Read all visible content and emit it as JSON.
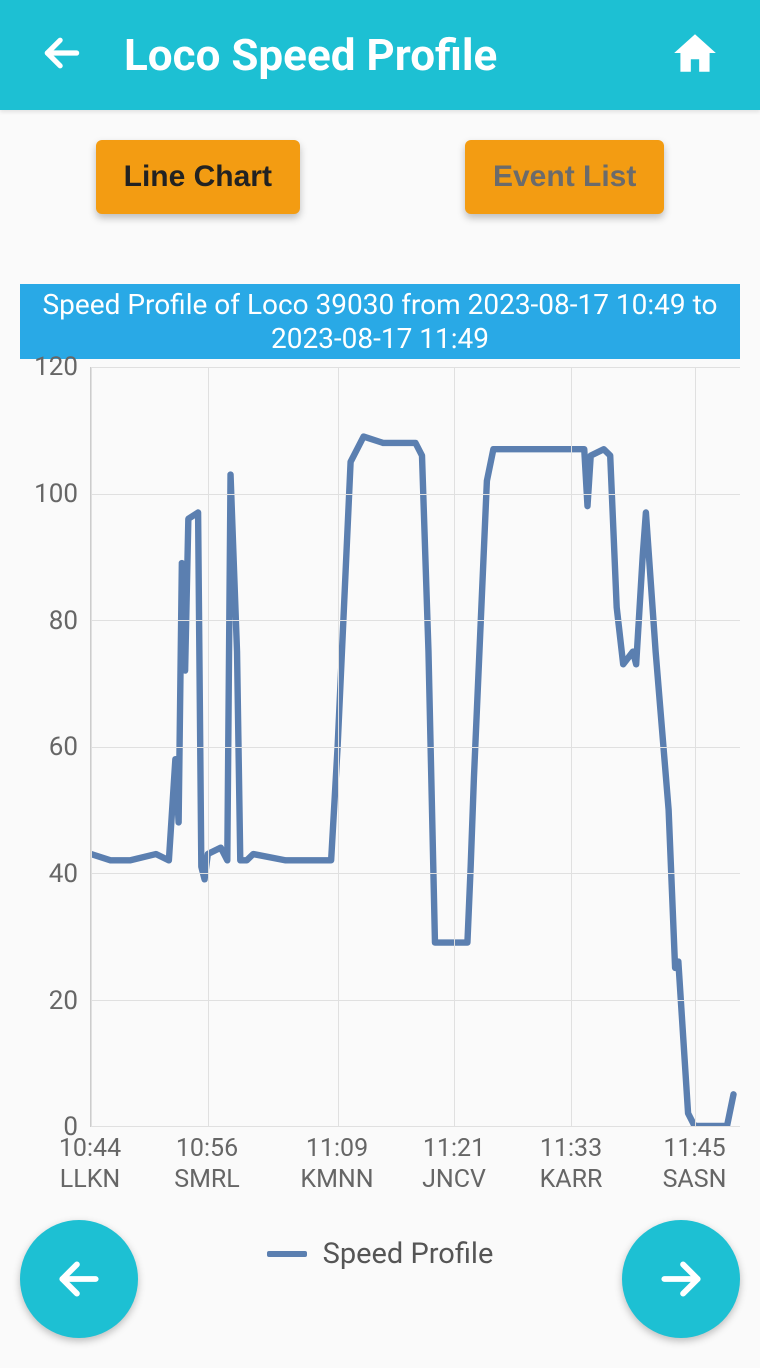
{
  "header": {
    "title": "Loco Speed Profile",
    "accent_color": "#1dc0d3"
  },
  "tabs": {
    "line_chart_label": "Line Chart",
    "event_list_label": "Event List",
    "button_color": "#f39c12",
    "active_text_color": "#222222",
    "inactive_text_color": "#6b6b6b"
  },
  "chart": {
    "title": "Speed Profile of Loco 39030 from 2023-08-17 10:49 to 2023-08-17 11:49",
    "title_bg_color": "#29a9e6",
    "title_text_color": "#ffffff",
    "type": "line",
    "ylim": [
      0,
      120
    ],
    "ytick_step": 20,
    "y_ticks": [
      0,
      20,
      40,
      60,
      80,
      100,
      120
    ],
    "x_ticks": [
      {
        "pos": 0.0,
        "time": "10:44",
        "station": "LLKN"
      },
      {
        "pos": 0.18,
        "time": "10:56",
        "station": "SMRL"
      },
      {
        "pos": 0.38,
        "time": "11:09",
        "station": "KMNN"
      },
      {
        "pos": 0.56,
        "time": "11:21",
        "station": "JNCV"
      },
      {
        "pos": 0.74,
        "time": "11:33",
        "station": "KARR"
      },
      {
        "pos": 0.93,
        "time": "11:45",
        "station": "SASN"
      }
    ],
    "line_color": "#5b7fb0",
    "line_width": 4,
    "grid_color": "#e0e0e0",
    "background_color": "#ffffff",
    "axis_text_color": "#666666",
    "series": [
      {
        "x": 0.0,
        "y": 43
      },
      {
        "x": 0.03,
        "y": 42
      },
      {
        "x": 0.06,
        "y": 42
      },
      {
        "x": 0.1,
        "y": 43
      },
      {
        "x": 0.12,
        "y": 42
      },
      {
        "x": 0.13,
        "y": 58
      },
      {
        "x": 0.135,
        "y": 48
      },
      {
        "x": 0.14,
        "y": 89
      },
      {
        "x": 0.145,
        "y": 72
      },
      {
        "x": 0.15,
        "y": 96
      },
      {
        "x": 0.165,
        "y": 97
      },
      {
        "x": 0.17,
        "y": 41
      },
      {
        "x": 0.175,
        "y": 39
      },
      {
        "x": 0.18,
        "y": 43
      },
      {
        "x": 0.2,
        "y": 44
      },
      {
        "x": 0.21,
        "y": 42
      },
      {
        "x": 0.215,
        "y": 103
      },
      {
        "x": 0.225,
        "y": 75
      },
      {
        "x": 0.23,
        "y": 42
      },
      {
        "x": 0.24,
        "y": 42
      },
      {
        "x": 0.25,
        "y": 43
      },
      {
        "x": 0.3,
        "y": 42
      },
      {
        "x": 0.35,
        "y": 42
      },
      {
        "x": 0.37,
        "y": 42
      },
      {
        "x": 0.38,
        "y": 60
      },
      {
        "x": 0.4,
        "y": 105
      },
      {
        "x": 0.42,
        "y": 109
      },
      {
        "x": 0.45,
        "y": 108
      },
      {
        "x": 0.5,
        "y": 108
      },
      {
        "x": 0.51,
        "y": 106
      },
      {
        "x": 0.52,
        "y": 75
      },
      {
        "x": 0.53,
        "y": 29
      },
      {
        "x": 0.55,
        "y": 29
      },
      {
        "x": 0.58,
        "y": 29
      },
      {
        "x": 0.585,
        "y": 41
      },
      {
        "x": 0.59,
        "y": 55
      },
      {
        "x": 0.61,
        "y": 102
      },
      {
        "x": 0.62,
        "y": 107
      },
      {
        "x": 0.68,
        "y": 107
      },
      {
        "x": 0.74,
        "y": 107
      },
      {
        "x": 0.76,
        "y": 107
      },
      {
        "x": 0.765,
        "y": 98
      },
      {
        "x": 0.77,
        "y": 106
      },
      {
        "x": 0.79,
        "y": 107
      },
      {
        "x": 0.8,
        "y": 106
      },
      {
        "x": 0.81,
        "y": 82
      },
      {
        "x": 0.82,
        "y": 73
      },
      {
        "x": 0.835,
        "y": 75
      },
      {
        "x": 0.84,
        "y": 73
      },
      {
        "x": 0.85,
        "y": 90
      },
      {
        "x": 0.855,
        "y": 97
      },
      {
        "x": 0.87,
        "y": 75
      },
      {
        "x": 0.89,
        "y": 50
      },
      {
        "x": 0.9,
        "y": 25
      },
      {
        "x": 0.905,
        "y": 26
      },
      {
        "x": 0.92,
        "y": 2
      },
      {
        "x": 0.93,
        "y": 0
      },
      {
        "x": 0.96,
        "y": 0
      },
      {
        "x": 0.98,
        "y": 0
      },
      {
        "x": 0.99,
        "y": 5
      }
    ],
    "legend_label": "Speed Profile"
  }
}
